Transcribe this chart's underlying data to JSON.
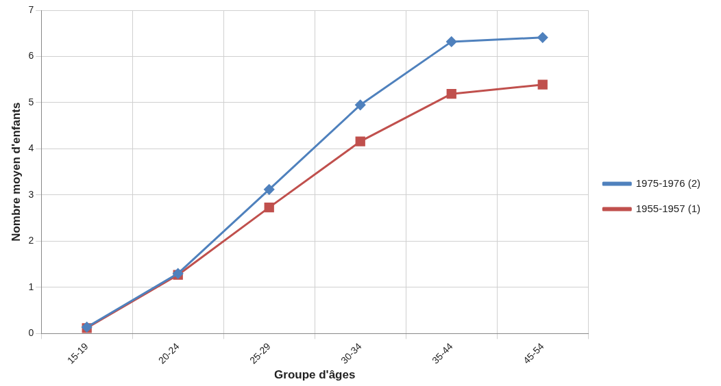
{
  "chart_data": {
    "type": "line",
    "xlabel": "Groupe d'âges",
    "ylabel": "Nombre moyen d'enfants",
    "categories": [
      "15-19",
      "20-24",
      "25-29",
      "30-34",
      "35-44",
      "45-54"
    ],
    "series": [
      {
        "name": "1955-1957 (1)",
        "color": "#c0504d",
        "marker": "square",
        "values": [
          0.12,
          1.27,
          2.73,
          4.16,
          5.19,
          5.39
        ]
      },
      {
        "name": "1975-1976 (2)",
        "color": "#4f81bd",
        "marker": "diamond",
        "values": [
          0.14,
          1.3,
          3.12,
          4.95,
          6.32,
          6.41
        ]
      }
    ],
    "ylim": [
      0,
      7
    ],
    "yticks": [
      0,
      1,
      2,
      3,
      4,
      5,
      6,
      7
    ],
    "grid": true,
    "legend": "right",
    "line_style": "solid"
  }
}
